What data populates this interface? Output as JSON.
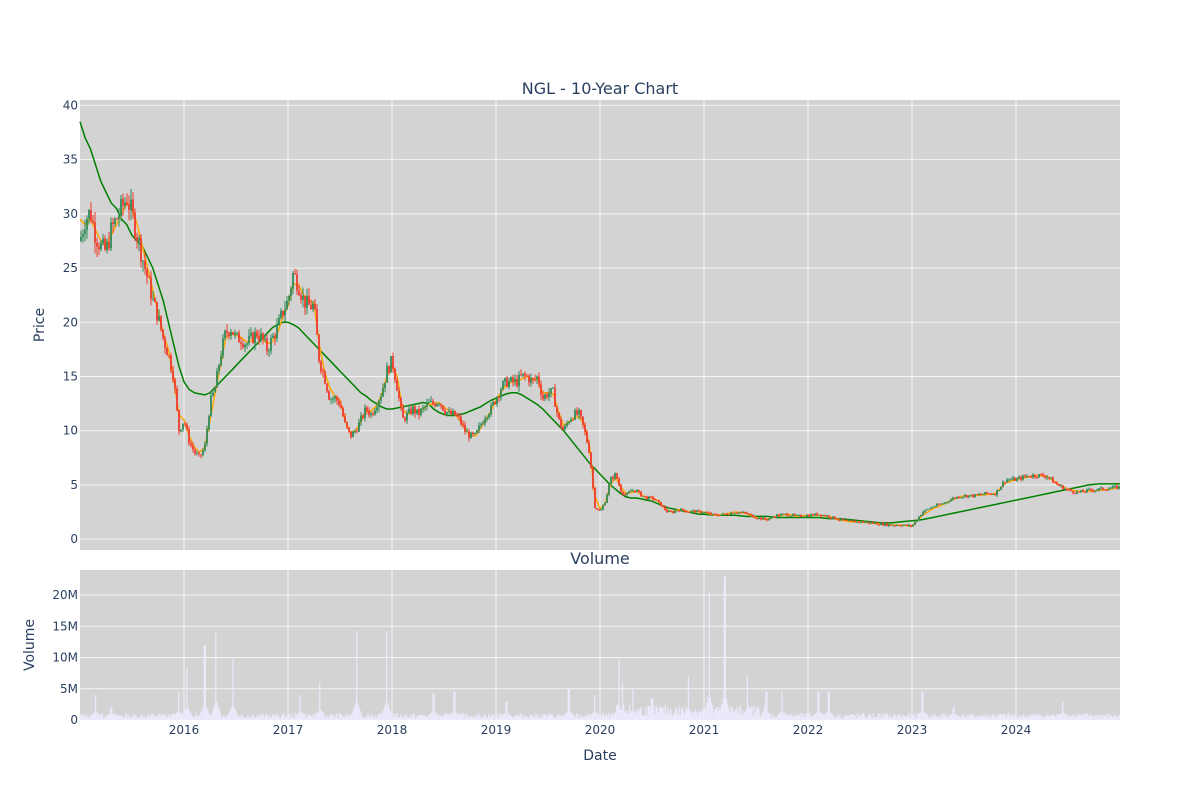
{
  "chart_data": [
    {
      "type": "candlestick",
      "title": "NGL - 10-Year Chart",
      "xlabel": "",
      "ylabel": "Price",
      "ylim": [
        -1,
        40.5
      ],
      "xlim": [
        2015.0,
        2025.0
      ],
      "yticks": [
        0,
        5,
        10,
        15,
        20,
        25,
        30,
        35,
        40
      ],
      "xticks": [
        2016,
        2017,
        2018,
        2019,
        2020,
        2021,
        2022,
        2023,
        2024
      ],
      "xtick_labels": [
        "2016",
        "2017",
        "2018",
        "2019",
        "2020",
        "2021",
        "2022",
        "2023",
        "2024"
      ],
      "grid": true,
      "background": "#d3d3d3",
      "increasing_color": "#2e8b57",
      "decreasing_color": "#ef3b2c",
      "price_series": {
        "x": [
          2015.0,
          2015.05,
          2015.1,
          2015.15,
          2015.2,
          2015.25,
          2015.3,
          2015.35,
          2015.4,
          2015.45,
          2015.5,
          2015.55,
          2015.6,
          2015.65,
          2015.7,
          2015.75,
          2015.8,
          2015.85,
          2015.9,
          2015.95,
          2016.0,
          2016.05,
          2016.1,
          2016.15,
          2016.2,
          2016.25,
          2016.3,
          2016.35,
          2016.4,
          2016.45,
          2016.5,
          2016.55,
          2016.6,
          2016.65,
          2016.7,
          2016.75,
          2016.8,
          2016.85,
          2016.9,
          2016.95,
          2017.0,
          2017.05,
          2017.1,
          2017.15,
          2017.2,
          2017.25,
          2017.3,
          2017.35,
          2017.4,
          2017.45,
          2017.5,
          2017.55,
          2017.6,
          2017.65,
          2017.7,
          2017.75,
          2017.8,
          2017.85,
          2017.9,
          2017.95,
          2018.0,
          2018.05,
          2018.1,
          2018.15,
          2018.2,
          2018.25,
          2018.3,
          2018.35,
          2018.4,
          2018.45,
          2018.5,
          2018.55,
          2018.6,
          2018.65,
          2018.7,
          2018.75,
          2018.8,
          2018.85,
          2018.9,
          2018.95,
          2019.0,
          2019.05,
          2019.1,
          2019.15,
          2019.2,
          2019.25,
          2019.3,
          2019.35,
          2019.4,
          2019.45,
          2019.5,
          2019.55,
          2019.6,
          2019.65,
          2019.7,
          2019.75,
          2019.8,
          2019.85,
          2019.9,
          2019.95,
          2020.0,
          2020.05,
          2020.1,
          2020.15,
          2020.2,
          2020.25,
          2020.3,
          2020.35,
          2020.4,
          2020.45,
          2020.5,
          2020.55,
          2020.6,
          2020.65,
          2020.7,
          2020.75,
          2020.8,
          2020.85,
          2020.9,
          2020.95,
          2021.0,
          2021.1,
          2021.2,
          2021.3,
          2021.4,
          2021.5,
          2021.6,
          2021.7,
          2021.8,
          2021.9,
          2022.0,
          2022.1,
          2022.2,
          2022.3,
          2022.4,
          2022.5,
          2022.6,
          2022.7,
          2022.8,
          2022.9,
          2023.0,
          2023.1,
          2023.2,
          2023.3,
          2023.4,
          2023.5,
          2023.6,
          2023.7,
          2023.8,
          2023.9,
          2024.0,
          2024.1,
          2024.2,
          2024.3,
          2024.4,
          2024.5,
          2024.6,
          2024.7,
          2024.8,
          2024.9,
          2025.0
        ],
        "close": [
          27.5,
          29.5,
          30.2,
          28.0,
          27.0,
          26.5,
          28.5,
          29.5,
          30.5,
          31.5,
          30.0,
          28.0,
          26.0,
          24.0,
          22.0,
          20.5,
          18.5,
          17.0,
          15.0,
          10.0,
          11.0,
          9.0,
          8.0,
          7.5,
          8.5,
          12.5,
          14.0,
          17.0,
          19.0,
          19.5,
          18.5,
          18.5,
          18.0,
          18.5,
          19.0,
          18.5,
          17.5,
          18.5,
          19.5,
          21.0,
          22.0,
          24.5,
          23.5,
          22.0,
          21.5,
          21.5,
          16.5,
          15.0,
          13.0,
          13.0,
          12.5,
          10.5,
          9.5,
          10.0,
          11.0,
          12.0,
          11.5,
          12.5,
          13.5,
          15.5,
          16.5,
          14.0,
          11.0,
          11.5,
          12.0,
          11.5,
          12.0,
          12.5,
          12.5,
          12.8,
          12.0,
          11.5,
          11.5,
          11.0,
          10.0,
          9.5,
          9.5,
          10.5,
          11.5,
          12.0,
          13.0,
          14.0,
          14.5,
          14.5,
          14.5,
          15.0,
          15.0,
          14.5,
          15.0,
          13.0,
          13.5,
          13.5,
          11.0,
          10.0,
          11.0,
          11.5,
          11.5,
          10.0,
          8.0,
          3.0,
          2.5,
          3.5,
          5.5,
          6.0,
          4.5,
          4.0,
          4.5,
          4.5,
          4.0,
          3.8,
          3.8,
          3.5,
          3.0,
          2.5,
          2.5,
          2.7,
          2.7,
          2.5,
          2.6,
          2.5,
          2.5,
          2.2,
          2.3,
          2.5,
          2.4,
          2.0,
          1.8,
          2.2,
          2.3,
          2.1,
          2.2,
          2.3,
          2.1,
          1.8,
          1.6,
          1.6,
          1.5,
          1.4,
          1.3,
          1.3,
          1.2,
          2.5,
          3.0,
          3.3,
          3.8,
          4.0,
          4.0,
          4.2,
          4.2,
          5.5,
          5.5,
          5.8,
          5.9,
          5.8,
          5.0,
          4.5,
          4.3,
          4.5,
          4.6,
          4.7,
          4.8
        ]
      },
      "ma_short": {
        "color": "#ffa500",
        "y": [
          29.5,
          29.0,
          29.5,
          28.5,
          27.5,
          27.0,
          28.0,
          29.0,
          30.0,
          31.0,
          30.5,
          29.0,
          27.0,
          25.0,
          23.0,
          21.0,
          19.0,
          17.5,
          15.0,
          11.5,
          11.0,
          9.5,
          8.5,
          8.0,
          8.5,
          11.0,
          13.5,
          16.0,
          18.5,
          19.0,
          18.8,
          18.6,
          18.2,
          18.3,
          18.8,
          18.6,
          18.0,
          18.2,
          19.0,
          20.5,
          21.5,
          23.5,
          23.5,
          22.5,
          22.0,
          21.8,
          18.0,
          15.5,
          14.0,
          13.2,
          12.8,
          11.0,
          9.8,
          10.0,
          10.8,
          11.8,
          11.8,
          12.3,
          13.3,
          15.0,
          16.0,
          15.0,
          12.0,
          11.5,
          11.8,
          11.8,
          12.0,
          12.4,
          12.5,
          12.6,
          12.2,
          11.8,
          11.6,
          11.0,
          10.2,
          9.6,
          9.5,
          10.2,
          11.0,
          11.8,
          12.8,
          13.6,
          14.2,
          14.5,
          14.5,
          14.8,
          15.0,
          14.7,
          14.8,
          13.5,
          13.5,
          13.4,
          11.8,
          10.5,
          10.8,
          11.2,
          11.3,
          10.5,
          8.5,
          4.0,
          2.8,
          3.3,
          5.0,
          5.7,
          4.8,
          4.2,
          4.3,
          4.4,
          4.1,
          3.8,
          3.8,
          3.6,
          3.1,
          2.6,
          2.5,
          2.7,
          2.7,
          2.5,
          2.6,
          2.5,
          2.5,
          2.2,
          2.3,
          2.5,
          2.4,
          2.0,
          1.8,
          2.1,
          2.3,
          2.1,
          2.2,
          2.2,
          2.1,
          1.8,
          1.6,
          1.6,
          1.5,
          1.4,
          1.3,
          1.3,
          1.2,
          2.2,
          2.8,
          3.2,
          3.7,
          4.0,
          4.0,
          4.1,
          4.2,
          5.2,
          5.5,
          5.7,
          5.9,
          5.8,
          5.1,
          4.6,
          4.4,
          4.4,
          4.5,
          4.6,
          4.8
        ]
      },
      "ma_long": {
        "color": "#008000",
        "y": [
          38.5,
          37.0,
          36.0,
          34.5,
          33.0,
          32.0,
          31.0,
          30.5,
          29.5,
          29.0,
          28.0,
          27.5,
          27.0,
          26.0,
          25.0,
          23.5,
          22.0,
          20.0,
          18.0,
          16.0,
          14.5,
          13.8,
          13.5,
          13.4,
          13.3,
          13.5,
          14.0,
          14.5,
          15.0,
          15.5,
          16.0,
          16.5,
          17.0,
          17.5,
          18.0,
          18.5,
          19.0,
          19.5,
          19.8,
          20.0,
          20.0,
          19.8,
          19.5,
          19.0,
          18.5,
          18.0,
          17.5,
          17.0,
          16.5,
          16.0,
          15.5,
          15.0,
          14.5,
          14.0,
          13.5,
          13.2,
          12.8,
          12.5,
          12.2,
          12.0,
          12.0,
          12.1,
          12.2,
          12.3,
          12.4,
          12.5,
          12.6,
          12.5,
          12.0,
          11.7,
          11.5,
          11.4,
          11.4,
          11.5,
          11.6,
          11.8,
          12.0,
          12.2,
          12.5,
          12.8,
          13.0,
          13.2,
          13.4,
          13.5,
          13.5,
          13.3,
          13.0,
          12.7,
          12.4,
          12.0,
          11.5,
          11.0,
          10.5,
          10.0,
          9.4,
          8.8,
          8.2,
          7.6,
          7.0,
          6.5,
          6.0,
          5.5,
          5.0,
          4.6,
          4.2,
          3.9,
          3.8,
          3.8,
          3.7,
          3.6,
          3.5,
          3.3,
          3.1,
          2.9,
          2.8,
          2.7,
          2.6,
          2.5,
          2.4,
          2.3,
          2.3,
          2.2,
          2.2,
          2.2,
          2.1,
          2.1,
          2.1,
          2.0,
          2.0,
          2.0,
          2.0,
          2.0,
          1.9,
          1.9,
          1.8,
          1.7,
          1.6,
          1.5,
          1.5,
          1.6,
          1.7,
          1.8,
          2.0,
          2.2,
          2.4,
          2.6,
          2.8,
          3.0,
          3.2,
          3.4,
          3.6,
          3.8,
          4.0,
          4.2,
          4.4,
          4.6,
          4.8,
          5.0,
          5.1,
          5.1,
          5.1,
          5.0,
          4.9,
          4.8,
          4.8
        ]
      }
    },
    {
      "type": "bar",
      "title": "Volume",
      "xlabel": "Date",
      "ylabel": "Volume",
      "ylim": [
        0,
        24000000
      ],
      "xlim": [
        2015.0,
        2025.0
      ],
      "yticks": [
        0,
        5000000,
        10000000,
        15000000,
        20000000
      ],
      "ytick_labels": [
        "0",
        "5M",
        "10M",
        "15M",
        "20M"
      ],
      "xticks": [
        2016,
        2017,
        2018,
        2019,
        2020,
        2021,
        2022,
        2023,
        2024
      ],
      "xtick_labels": [
        "2016",
        "2017",
        "2018",
        "2019",
        "2020",
        "2021",
        "2022",
        "2023",
        "2024"
      ],
      "grid": true,
      "bar_color": "#eaeafc",
      "background": "#d3d3d3",
      "baseline": 700000,
      "spikes": [
        {
          "x": 2015.15,
          "value": 4000000
        },
        {
          "x": 2015.3,
          "value": 2000000
        },
        {
          "x": 2015.95,
          "value": 4500000
        },
        {
          "x": 2016.03,
          "value": 8500000
        },
        {
          "x": 2016.2,
          "value": 12000000
        },
        {
          "x": 2016.31,
          "value": 14000000
        },
        {
          "x": 2016.47,
          "value": 10000000
        },
        {
          "x": 2017.12,
          "value": 4000000
        },
        {
          "x": 2017.31,
          "value": 6000000
        },
        {
          "x": 2017.66,
          "value": 14200000
        },
        {
          "x": 2017.95,
          "value": 14200000
        },
        {
          "x": 2018.4,
          "value": 4200000
        },
        {
          "x": 2018.6,
          "value": 4500000
        },
        {
          "x": 2019.1,
          "value": 3000000
        },
        {
          "x": 2019.7,
          "value": 5000000
        },
        {
          "x": 2019.95,
          "value": 4000000
        },
        {
          "x": 2020.18,
          "value": 10000000
        },
        {
          "x": 2020.22,
          "value": 6000000
        },
        {
          "x": 2020.32,
          "value": 5000000
        },
        {
          "x": 2020.5,
          "value": 3500000
        },
        {
          "x": 2020.85,
          "value": 7000000
        },
        {
          "x": 2021.05,
          "value": 20500000
        },
        {
          "x": 2021.2,
          "value": 23000000
        },
        {
          "x": 2021.42,
          "value": 7000000
        },
        {
          "x": 2021.6,
          "value": 4500000
        },
        {
          "x": 2021.75,
          "value": 4500000
        },
        {
          "x": 2022.1,
          "value": 4500000
        },
        {
          "x": 2022.2,
          "value": 4500000
        },
        {
          "x": 2023.1,
          "value": 4500000
        },
        {
          "x": 2023.4,
          "value": 2000000
        },
        {
          "x": 2024.45,
          "value": 3000000
        }
      ]
    }
  ]
}
